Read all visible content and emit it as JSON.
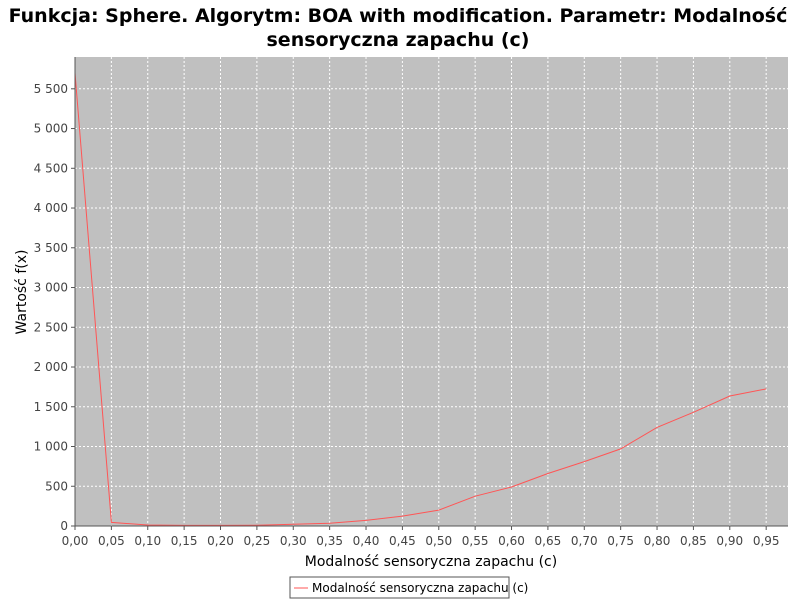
{
  "chart_data": {
    "type": "line",
    "title_line1": "Funkcja: Sphere. Algorytm: BOA with modification. Parametr: Modalność",
    "title_line2": "sensoryczna zapachu (c)",
    "xlabel": "Modalność sensoryczna zapachu (c)",
    "ylabel": "Wartość f(x)",
    "xlim": [
      0.0,
      0.98
    ],
    "ylim": [
      0,
      5900
    ],
    "x_ticks": [
      "0,00",
      "0,05",
      "0,10",
      "0,15",
      "0,20",
      "0,25",
      "0,30",
      "0,35",
      "0,40",
      "0,45",
      "0,50",
      "0,55",
      "0,60",
      "0,65",
      "0,70",
      "0,75",
      "0,80",
      "0,85",
      "0,90",
      "0,95"
    ],
    "y_ticks": [
      "0",
      "500",
      "1 000",
      "1 500",
      "2 000",
      "2 500",
      "3 000",
      "3 500",
      "4 000",
      "4 500",
      "5 000",
      "5 500"
    ],
    "grid": true,
    "legend_position": "bottom-center",
    "plot_background": "#c0c0c0",
    "series": [
      {
        "name": "Modalność sensoryczna zapachu (c)",
        "color": "#ff5555",
        "x": [
          0.0,
          0.05,
          0.1,
          0.15,
          0.2,
          0.25,
          0.3,
          0.35,
          0.4,
          0.45,
          0.5,
          0.55,
          0.6,
          0.65,
          0.7,
          0.75,
          0.8,
          0.85,
          0.9,
          0.95
        ],
        "y": [
          5700,
          45,
          12,
          8,
          8,
          10,
          22,
          35,
          70,
          125,
          200,
          375,
          490,
          660,
          810,
          970,
          1240,
          1430,
          1635,
          1725
        ]
      }
    ]
  }
}
